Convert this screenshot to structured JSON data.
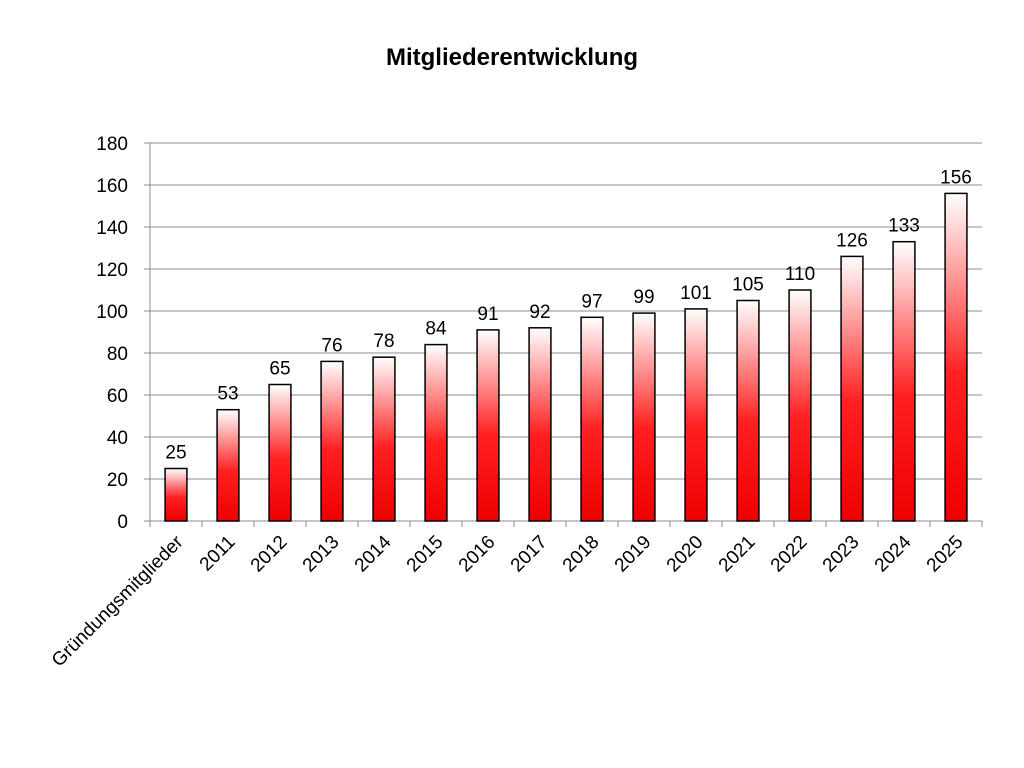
{
  "chart_data": {
    "type": "bar",
    "title": "Mitgliederentwicklung",
    "xlabel": "",
    "ylabel": "",
    "categories": [
      "Gründungsmitglieder",
      "2011",
      "2012",
      "2013",
      "2014",
      "2015",
      "2016",
      "2017",
      "2018",
      "2019",
      "2020",
      "2021",
      "2022",
      "2023",
      "2024",
      "2025"
    ],
    "values": [
      25,
      53,
      65,
      76,
      78,
      84,
      91,
      92,
      97,
      99,
      101,
      105,
      110,
      126,
      133,
      156
    ],
    "ylim": [
      0,
      180
    ],
    "yticks": [
      0,
      20,
      40,
      60,
      80,
      100,
      120,
      140,
      160,
      180
    ],
    "grid": true,
    "legend": null,
    "data_labels": true,
    "bar_color": "#ff0000",
    "bar_gradient": [
      "#ffffff",
      "#ff0000"
    ]
  }
}
